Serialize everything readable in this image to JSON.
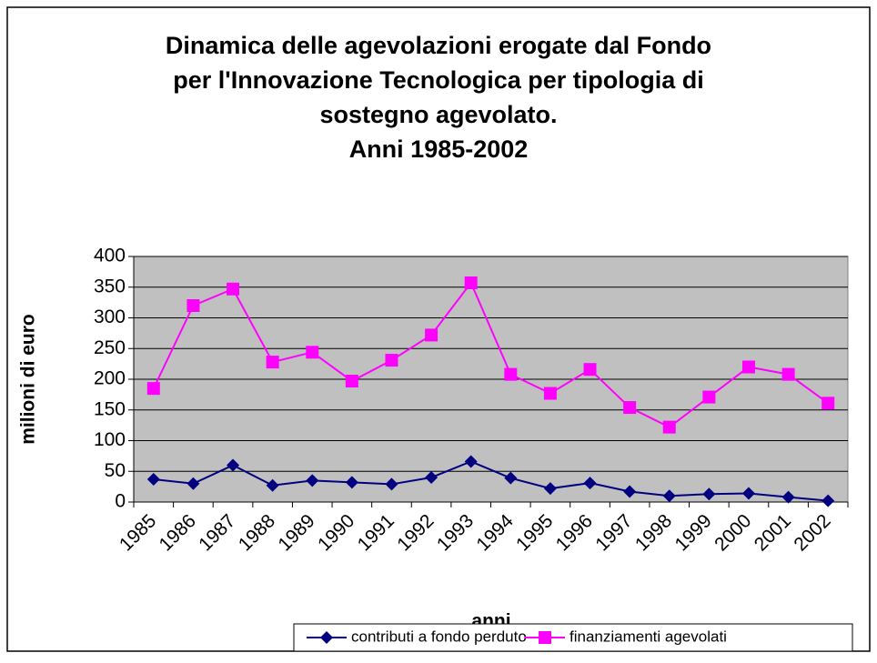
{
  "chart_data": {
    "type": "line",
    "title": [
      "Dinamica delle agevolazioni erogate dal Fondo",
      "per l'Innovazione Tecnologica per tipologia di",
      "sostegno agevolato.",
      "Anni 1985-2002"
    ],
    "x_label": "anni",
    "y_label": "milioni di euro",
    "categories": [
      "1985",
      "1986",
      "1987",
      "1988",
      "1989",
      "1990",
      "1991",
      "1992",
      "1993",
      "1994",
      "1995",
      "1996",
      "1997",
      "1998",
      "1999",
      "2000",
      "2001",
      "2002"
    ],
    "series": [
      {
        "name": "contributi a fondo perduto",
        "color": "#000080",
        "marker": "diamond",
        "values": [
          37,
          30,
          60,
          27,
          35,
          32,
          29,
          40,
          66,
          39,
          22,
          31,
          17,
          10,
          13,
          14,
          8,
          2
        ]
      },
      {
        "name": "finanziamenti agevolati",
        "color": "#ff00ff",
        "marker": "square",
        "values": [
          185,
          320,
          347,
          228,
          244,
          197,
          231,
          272,
          357,
          208,
          177,
          216,
          154,
          122,
          171,
          220,
          208,
          161
        ]
      }
    ],
    "ylim": [
      0,
      400
    ],
    "yticks": [
      0,
      50,
      100,
      150,
      200,
      250,
      300,
      350,
      400
    ],
    "grid": true,
    "legend": "bottom"
  }
}
